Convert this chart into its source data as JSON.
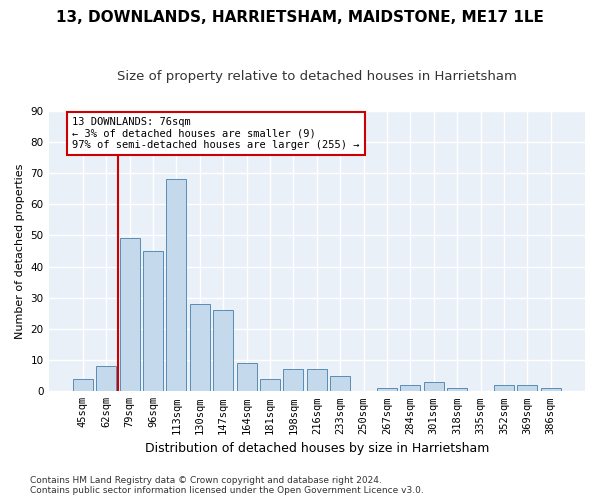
{
  "title": "13, DOWNLANDS, HARRIETSHAM, MAIDSTONE, ME17 1LE",
  "subtitle": "Size of property relative to detached houses in Harrietsham",
  "xlabel": "Distribution of detached houses by size in Harrietsham",
  "ylabel": "Number of detached properties",
  "categories": [
    "45sqm",
    "62sqm",
    "79sqm",
    "96sqm",
    "113sqm",
    "130sqm",
    "147sqm",
    "164sqm",
    "181sqm",
    "198sqm",
    "216sqm",
    "233sqm",
    "250sqm",
    "267sqm",
    "284sqm",
    "301sqm",
    "318sqm",
    "335sqm",
    "352sqm",
    "369sqm",
    "386sqm"
  ],
  "values": [
    4,
    8,
    49,
    45,
    68,
    28,
    26,
    9,
    4,
    7,
    7,
    5,
    0,
    1,
    2,
    3,
    1,
    0,
    2,
    2,
    1
  ],
  "bar_color": "#c5d9ed",
  "bar_edge_color": "#5a8db5",
  "annotation_text": "13 DOWNLANDS: 76sqm\n← 3% of detached houses are smaller (9)\n97% of semi-detached houses are larger (255) →",
  "annotation_box_color": "white",
  "annotation_box_edge_color": "#cc0000",
  "vline_x": 1.5,
  "vline_color": "#cc0000",
  "ylim": [
    0,
    90
  ],
  "yticks": [
    0,
    10,
    20,
    30,
    40,
    50,
    60,
    70,
    80,
    90
  ],
  "footer": "Contains HM Land Registry data © Crown copyright and database right 2024.\nContains public sector information licensed under the Open Government Licence v3.0.",
  "bg_color": "#eaf0f8",
  "grid_color": "white",
  "title_fontsize": 11,
  "subtitle_fontsize": 9.5,
  "xlabel_fontsize": 9,
  "ylabel_fontsize": 8,
  "tick_fontsize": 7.5,
  "footer_fontsize": 6.5
}
